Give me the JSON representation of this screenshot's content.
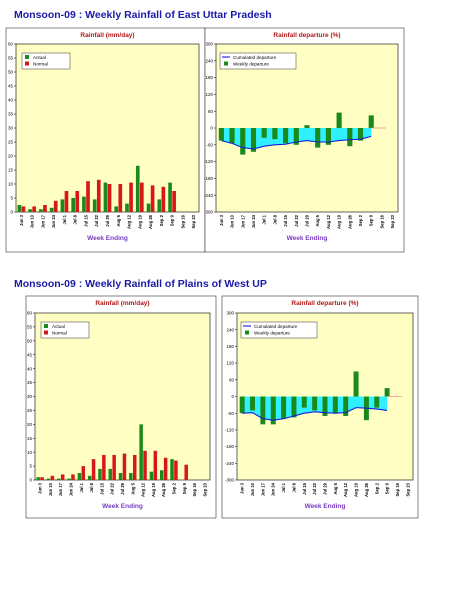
{
  "sections": [
    {
      "title": "Monsoon-09 : Weekly Rainfall of  East Uttar Pradesh",
      "rain": {
        "subtitle": "Rainfall (mm/day)",
        "xlabel": "Week Ending",
        "ylim": [
          0,
          60
        ],
        "yticks": [
          0,
          5,
          10,
          15,
          20,
          25,
          30,
          35,
          40,
          45,
          50,
          55,
          60
        ],
        "legend": [
          "Actual",
          "Normal"
        ],
        "categories": [
          "Jun 3",
          "Jun 10",
          "Jun 17",
          "Jun 24",
          "Jul 1",
          "Jul 8",
          "Jul 15",
          "Jul 22",
          "Jul 29",
          "Aug 5",
          "Aug 12",
          "Aug 19",
          "Aug 26",
          "Sep 2",
          "Sep 9",
          "Sep 16",
          "Sep 23"
        ],
        "actual": [
          2.5,
          1,
          1,
          1.5,
          4.5,
          5,
          5.5,
          4.5,
          10.5,
          2,
          3,
          16.5,
          3,
          4.5,
          10.5,
          null,
          null
        ],
        "normal": [
          2,
          2,
          2.5,
          4,
          7.5,
          7.5,
          11,
          11.5,
          10,
          10,
          10.5,
          10.5,
          9.5,
          9,
          7.5,
          null,
          null
        ]
      },
      "dep": {
        "subtitle": "Rainfall departure (%)",
        "xlabel": "Week Ending",
        "ylim": [
          -300,
          300
        ],
        "yticks": [
          -300,
          -240,
          -180,
          -120,
          -60,
          0,
          60,
          120,
          180,
          240,
          300
        ],
        "legend": [
          "Cumulated departure",
          "Weekly departure"
        ],
        "categories": [
          "Jun 3",
          "Jun 10",
          "Jun 17",
          "Jun 24",
          "Jul 1",
          "Jul 8",
          "Jul 15",
          "Jul 22",
          "Jul 29",
          "Aug 5",
          "Aug 12",
          "Aug 19",
          "Aug 26",
          "Sep 2",
          "Sep 9",
          "Sep 16",
          "Sep 23"
        ],
        "weekly": [
          -45,
          -55,
          -95,
          -85,
          -35,
          -40,
          -55,
          -60,
          10,
          -70,
          -60,
          55,
          -65,
          -45,
          45,
          null,
          null
        ],
        "cumulative": [
          -45,
          -55,
          -70,
          -75,
          -65,
          -60,
          -58,
          -50,
          -45,
          -50,
          -50,
          -45,
          -42,
          -40,
          -30,
          null,
          null
        ]
      }
    },
    {
      "title": "Monsoon-09 : Weekly Rainfall of  Plains of West UP",
      "rain": {
        "subtitle": "Rainfall (mm/day)",
        "xlabel": "Week Ending",
        "ylim": [
          0,
          60
        ],
        "yticks": [
          0,
          5,
          10,
          15,
          20,
          25,
          30,
          35,
          40,
          45,
          50,
          55,
          60
        ],
        "legend": [
          "Actual",
          "Normal"
        ],
        "categories": [
          "Jun 3",
          "Jun 10",
          "Jun 17",
          "Jun 24",
          "Jul 1",
          "Jul 8",
          "Jul 15",
          "Jul 22",
          "Jul 29",
          "Aug 5",
          "Aug 12",
          "Aug 19",
          "Aug 26",
          "Sep 2",
          "Sep 9",
          "Sep 16",
          "Sep 23"
        ],
        "actual": [
          1,
          0.5,
          0.5,
          0.5,
          2.5,
          1.5,
          4,
          4,
          2.5,
          2.5,
          20,
          3,
          3.5,
          7.5,
          null,
          null,
          null
        ],
        "normal": [
          1,
          1.5,
          2,
          2,
          5,
          7.5,
          9,
          9,
          9.5,
          9,
          10.5,
          10.5,
          8,
          7,
          5.5,
          null,
          null
        ]
      },
      "dep": {
        "subtitle": "Rainfall departure (%)",
        "xlabel": "Week Ending",
        "ylim": [
          -300,
          300
        ],
        "yticks": [
          -300,
          -240,
          -180,
          -120,
          -60,
          0,
          60,
          120,
          180,
          240,
          300
        ],
        "legend": [
          "Cumulated departure",
          "Weekly departure"
        ],
        "categories": [
          "Jun 3",
          "Jun 10",
          "Jun 17",
          "Jun 24",
          "Jul 1",
          "Jul 8",
          "Jul 15",
          "Jul 22",
          "Jul 29",
          "Aug 5",
          "Aug 12",
          "Aug 19",
          "Aug 26",
          "Sep 2",
          "Sep 9",
          "Sep 16",
          "Sep 23"
        ],
        "weekly": [
          -60,
          -50,
          -100,
          -100,
          -80,
          -75,
          -40,
          -50,
          -70,
          -60,
          -70,
          90,
          -85,
          -40,
          30,
          null,
          null
        ],
        "cumulative": [
          -60,
          -58,
          -80,
          -85,
          -80,
          -70,
          -60,
          -55,
          -58,
          -60,
          -58,
          -40,
          -42,
          -45,
          -50,
          null,
          null
        ]
      }
    }
  ],
  "chart_data": [
    {
      "type": "bar",
      "title": "Rainfall (mm/day)",
      "xlabel": "Week Ending",
      "ylabel": "",
      "ylim": [
        0,
        60
      ],
      "categories": [
        "Jun 3",
        "Jun 10",
        "Jun 17",
        "Jun 24",
        "Jul 1",
        "Jul 8",
        "Jul 15",
        "Jul 22",
        "Jul 29",
        "Aug 5",
        "Aug 12",
        "Aug 19",
        "Aug 26",
        "Sep 2",
        "Sep 9",
        "Sep 16",
        "Sep 23"
      ],
      "series": [
        {
          "name": "Actual",
          "values": [
            2.5,
            1,
            1,
            1.5,
            4.5,
            5,
            5.5,
            4.5,
            10.5,
            2,
            3,
            16.5,
            3,
            4.5,
            10.5,
            null,
            null
          ]
        },
        {
          "name": "Normal",
          "values": [
            2,
            2,
            2.5,
            4,
            7.5,
            7.5,
            11,
            11.5,
            10,
            10,
            10.5,
            10.5,
            9.5,
            9,
            7.5,
            null,
            null
          ]
        }
      ],
      "legend": "top-left",
      "grid": false,
      "colors": {
        "Actual": "#1a8a1a",
        "Normal": "#d81818",
        "background": "#ffffc4"
      }
    },
    {
      "type": "bar",
      "title": "Rainfall departure (%)",
      "xlabel": "Week Ending",
      "ylabel": "",
      "ylim": [
        -300,
        300
      ],
      "categories": [
        "Jun 3",
        "Jun 10",
        "Jun 17",
        "Jun 24",
        "Jul 1",
        "Jul 8",
        "Jul 15",
        "Jul 22",
        "Jul 29",
        "Aug 5",
        "Aug 12",
        "Aug 19",
        "Aug 26",
        "Sep 2",
        "Sep 9",
        "Sep 16",
        "Sep 23"
      ],
      "series": [
        {
          "name": "Weekly departure",
          "values": [
            -45,
            -55,
            -95,
            -85,
            -35,
            -40,
            -55,
            -60,
            10,
            -70,
            -60,
            55,
            -65,
            -45,
            45,
            null,
            null
          ]
        },
        {
          "name": "Cumulated departure",
          "values": [
            -45,
            -55,
            -70,
            -75,
            -65,
            -60,
            -58,
            -50,
            -45,
            -50,
            -50,
            -45,
            -42,
            -40,
            -30,
            null,
            null
          ]
        }
      ],
      "legend": "top-left",
      "grid": false,
      "colors": {
        "Weekly departure": "#1a8a1a",
        "Cumulated departure": "#1a1ad8",
        "fill": "#30f0ff",
        "background": "#ffffc4"
      }
    },
    {
      "type": "bar",
      "title": "Rainfall (mm/day)",
      "xlabel": "Week Ending",
      "ylabel": "",
      "ylim": [
        0,
        60
      ],
      "categories": [
        "Jun 3",
        "Jun 10",
        "Jun 17",
        "Jun 24",
        "Jul 1",
        "Jul 8",
        "Jul 15",
        "Jul 22",
        "Jul 29",
        "Aug 5",
        "Aug 12",
        "Aug 19",
        "Aug 26",
        "Sep 2",
        "Sep 9",
        "Sep 16",
        "Sep 23"
      ],
      "series": [
        {
          "name": "Actual",
          "values": [
            1,
            0.5,
            0.5,
            0.5,
            2.5,
            1.5,
            4,
            4,
            2.5,
            2.5,
            20,
            3,
            3.5,
            7.5,
            null,
            null,
            null
          ]
        },
        {
          "name": "Normal",
          "values": [
            1,
            1.5,
            2,
            2,
            5,
            7.5,
            9,
            9,
            9.5,
            9,
            10.5,
            10.5,
            8,
            7,
            5.5,
            null,
            null
          ]
        }
      ],
      "legend": "top-left",
      "grid": false,
      "colors": {
        "Actual": "#1a8a1a",
        "Normal": "#d81818",
        "background": "#ffffc4"
      }
    },
    {
      "type": "bar",
      "title": "Rainfall departure (%)",
      "xlabel": "Week Ending",
      "ylabel": "",
      "ylim": [
        -300,
        300
      ],
      "categories": [
        "Jun 3",
        "Jun 10",
        "Jun 17",
        "Jun 24",
        "Jul 1",
        "Jul 8",
        "Jul 15",
        "Jul 22",
        "Jul 29",
        "Aug 5",
        "Aug 12",
        "Aug 19",
        "Aug 26",
        "Sep 2",
        "Sep 9",
        "Sep 16",
        "Sep 23"
      ],
      "series": [
        {
          "name": "Weekly departure",
          "values": [
            -60,
            -50,
            -100,
            -100,
            -80,
            -75,
            -40,
            -50,
            -70,
            -60,
            -70,
            90,
            -85,
            -40,
            30,
            null,
            null
          ]
        },
        {
          "name": "Cumulated departure",
          "values": [
            -60,
            -58,
            -80,
            -85,
            -80,
            -70,
            -60,
            -55,
            -58,
            -60,
            -58,
            -40,
            -42,
            -45,
            -50,
            null,
            null
          ]
        }
      ],
      "legend": "top-left",
      "grid": false,
      "colors": {
        "Weekly departure": "#1a8a1a",
        "Cumulated departure": "#1a1ad8",
        "fill": "#30f0ff",
        "background": "#ffffc4"
      }
    }
  ],
  "colors": {
    "actual": "#1a8a1a",
    "normal": "#d81818",
    "weekly": "#1a8a1a",
    "cumulative": "#1a1ad8",
    "cumfill": "#30f0ff",
    "zeroline": "#ff8080",
    "plotbg": "#ffffc4"
  }
}
